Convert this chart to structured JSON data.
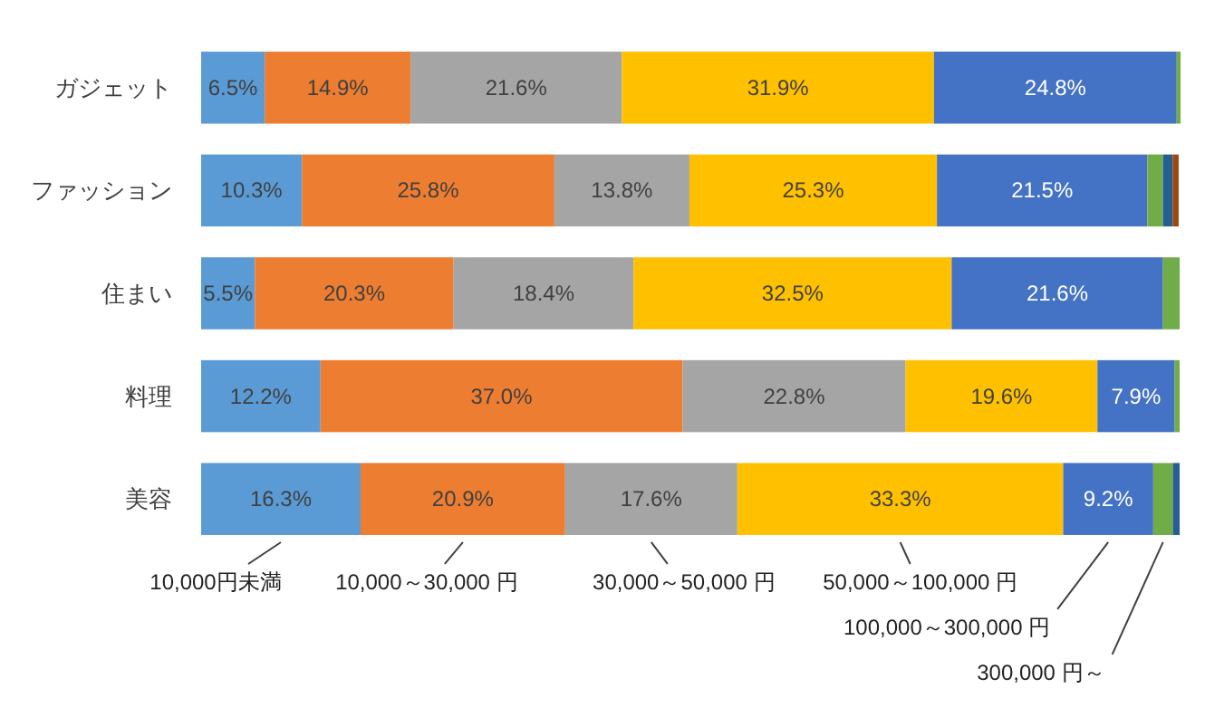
{
  "chart_data": {
    "type": "bar",
    "orientation": "horizontal",
    "stacked": true,
    "categories": [
      "ガジェット",
      "ファッション",
      "住まい",
      "料理",
      "美容"
    ],
    "xlim": [
      0,
      100
    ],
    "legend": "bottom",
    "series": [
      {
        "name": "10,000円未満",
        "color": "#5b9bd5",
        "values": [
          6.5,
          10.3,
          5.5,
          12.2,
          16.3
        ],
        "value_labels": [
          "6.5%",
          "10.3%",
          "5.5%",
          "12.2%",
          "16.3%"
        ]
      },
      {
        "name": "10,000～30,000 円",
        "color": "#ed7d31",
        "values": [
          14.9,
          25.8,
          20.3,
          37.0,
          20.9
        ],
        "value_labels": [
          "14.9%",
          "25.8%",
          "20.3%",
          "37.0%",
          "20.9%"
        ]
      },
      {
        "name": "30,000～50,000 円",
        "color": "#a5a5a5",
        "values": [
          21.6,
          13.8,
          18.4,
          22.8,
          17.6
        ],
        "value_labels": [
          "21.6%",
          "13.8%",
          "18.4%",
          "22.8%",
          "17.6%"
        ]
      },
      {
        "name": "50,000～100,000 円",
        "color": "#ffc000",
        "values": [
          31.9,
          25.3,
          32.5,
          19.6,
          33.3
        ],
        "value_labels": [
          "31.9%",
          "25.3%",
          "32.5%",
          "19.6%",
          "33.3%"
        ]
      },
      {
        "name": "100,000～300,000 円",
        "color": "#4472c4",
        "values": [
          24.8,
          21.5,
          21.6,
          7.9,
          9.2
        ],
        "value_labels": [
          "24.8%",
          "21.5%",
          "21.6%",
          "7.9%",
          "9.2%"
        ]
      },
      {
        "name": "300,000 円～",
        "color": "#70ad47",
        "values": [
          0.4,
          1.6,
          1.7,
          0.5,
          2.0
        ],
        "value_labels": [
          null,
          null,
          null,
          null,
          null
        ]
      },
      {
        "color": "#255e91",
        "values": [
          null,
          1.0,
          null,
          null,
          0.7
        ],
        "value_labels": [
          null,
          null,
          null,
          null,
          null
        ]
      },
      {
        "color": "#9e480e",
        "values": [
          null,
          0.6,
          null,
          null,
          null
        ],
        "value_labels": [
          null,
          null,
          null,
          null,
          null
        ]
      }
    ]
  }
}
